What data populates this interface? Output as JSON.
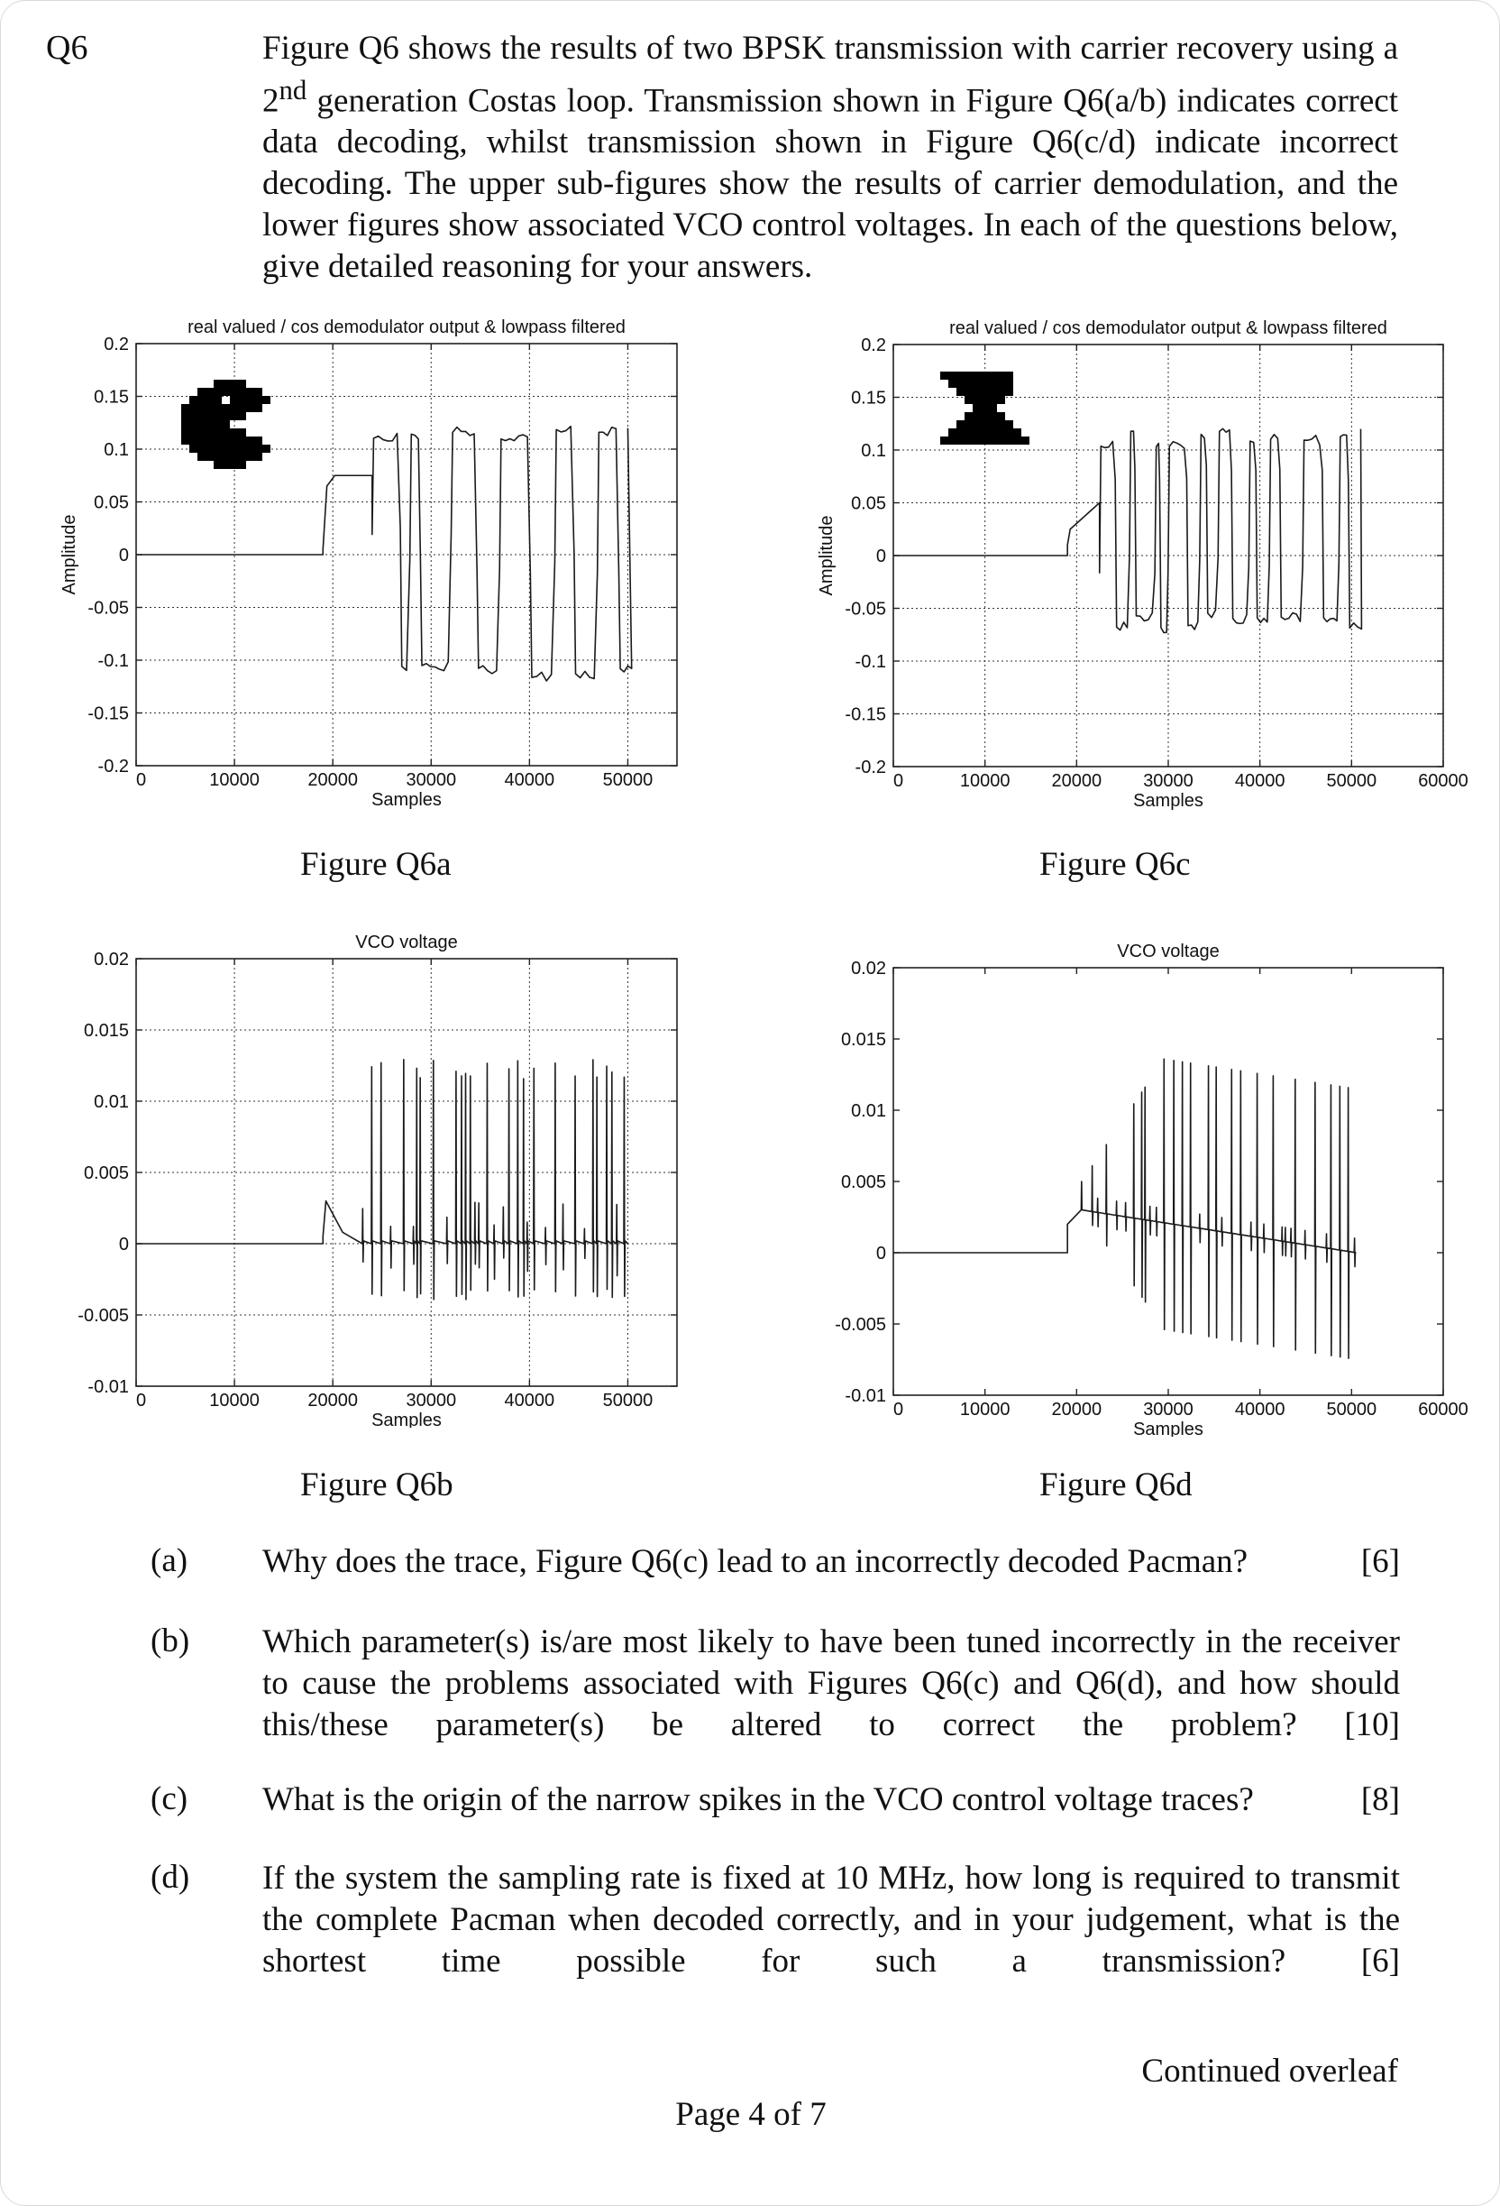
{
  "question_number": "Q6",
  "intro_html": "Figure Q6 shows the results of two BPSK transmission with carrier recovery using a 2<sup>nd</sup> generation Costas loop. Transmission shown in Figure Q6(a/b) indicates correct data decoding, whilst transmission shown in Figure Q6(c/d) indicate incorrect decoding. The upper sub-figures show the results of carrier demodulation, and the lower figures show associated VCO control voltages. In each of the questions below, give detailed reasoning for your answers.",
  "intro_parts": {
    "before": "Figure Q6 shows the results of two BPSK transmission with carrier recovery using a 2",
    "sup": "nd",
    "after": " generation Costas loop. Transmission shown in Figure Q6(a/b) indicates correct data decoding, whilst transmission shown in Figure Q6(c/d) indicate incorrect decoding. The upper sub-figures show the results of carrier demodulation, and the lower figures show associated VCO control voltages. In each of the questions below, give detailed reasoning for your answers."
  },
  "figures": {
    "a": {
      "caption": "Figure Q6a"
    },
    "b": {
      "caption": "Figure Q6b"
    },
    "c": {
      "caption": "Figure Q6c"
    },
    "d": {
      "caption": "Figure Q6d"
    }
  },
  "chart_data": [
    {
      "id": "Q6a",
      "type": "line",
      "title": "real valued / cos demodulator output & lowpass filtered",
      "xlabel": "Samples",
      "ylabel": "Amplitude",
      "xlim": [
        0,
        55000
      ],
      "ylim": [
        -0.2,
        0.2
      ],
      "xticks": [
        "0",
        "10000",
        "20000",
        "30000",
        "40000",
        "50000"
      ],
      "yticks": [
        "0.2",
        "0.15",
        "0.1",
        "0.05",
        "0",
        "-0.05",
        "-0.1",
        "-0.15",
        "-0.2"
      ],
      "grid": true,
      "inset": "pacman",
      "description_points": {
        "baseline_until": 19000,
        "step_level": 0.075,
        "step_end": 24000,
        "signal_end": 50000,
        "high": 0.12,
        "low": -0.12
      }
    },
    {
      "id": "Q6c",
      "type": "line",
      "title": "real valued / cos demodulator output  & lowpass filtered",
      "xlabel": "Samples",
      "ylabel": "Amplitude",
      "xlim": [
        0,
        60000
      ],
      "ylim": [
        -0.2,
        0.2
      ],
      "xticks": [
        "0",
        "10000",
        "20000",
        "30000",
        "40000",
        "50000",
        "60000"
      ],
      "yticks": [
        "0.2",
        "0.15",
        "0.1",
        "0.05",
        "0",
        "-0.05",
        "-0.1",
        "-0.15",
        "-0.2"
      ],
      "grid": true,
      "inset": "corrupted",
      "description_points": {
        "baseline_until": 19000,
        "signal_end": 51000,
        "high": 0.12,
        "low": -0.05
      }
    },
    {
      "id": "Q6b",
      "type": "line",
      "title": "VCO voltage",
      "xlabel": "Samples",
      "ylabel": "",
      "xlim": [
        0,
        55000
      ],
      "ylim": [
        -0.01,
        0.02
      ],
      "xticks": [
        "0",
        "10000",
        "20000",
        "30000",
        "40000",
        "50000"
      ],
      "yticks": [
        "0.02",
        "0.015",
        "0.01",
        "0.005",
        "0",
        "-0.005",
        "-0.01"
      ],
      "grid": true,
      "description_points": {
        "baseline_until": 19000,
        "bump_peak": 0.003,
        "spike_high": 0.013,
        "spike_low": -0.004,
        "signal_end": 50000
      }
    },
    {
      "id": "Q6d",
      "type": "line",
      "title": "VCO voltage",
      "xlabel": "Samples",
      "ylabel": "",
      "xlim": [
        0,
        60000
      ],
      "ylim": [
        -0.01,
        0.02
      ],
      "xticks": [
        "0",
        "10000",
        "20000",
        "30000",
        "40000",
        "50000",
        "60000"
      ],
      "yticks": [
        "0.02",
        "0.015",
        "0.01",
        "0.005",
        "0",
        "-0.005",
        "-0.01"
      ],
      "grid": false,
      "description_points": {
        "baseline_until": 19000,
        "drift_level": 0.003,
        "spike_high": 0.0135,
        "spike_low": -0.0075,
        "signal_end": 50500
      }
    }
  ],
  "questions": [
    {
      "label": "(a)",
      "text": "Why does the trace, Figure Q6(c) lead to an incorrectly decoded Pacman?",
      "marks": "[6]"
    },
    {
      "label": "(b)",
      "text": "Which parameter(s) is/are most likely to have been tuned incorrectly in the receiver to cause the problems associated with Figures Q6(c) and Q6(d), and how should this/these parameter(s) be altered to correct the problem?",
      "marks": "[10]"
    },
    {
      "label": "(c)",
      "text": "What is the origin of the narrow spikes in the VCO control voltage traces?",
      "marks": "[8]"
    },
    {
      "label": "(d)",
      "text": "If the system the sampling rate is fixed at 10 MHz, how long is required to transmit the complete Pacman when decoded correctly, and in your judgement, what is the shortest time possible for such a transmission?",
      "marks": "[6]"
    }
  ],
  "footer": {
    "continued": "Continued overleaf",
    "page": "Page 4 of 7"
  }
}
